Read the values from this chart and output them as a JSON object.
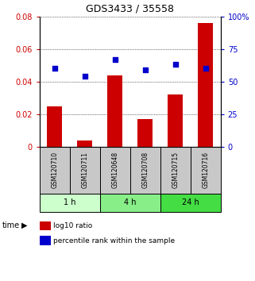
{
  "title": "GDS3433 / 35558",
  "samples": [
    "GSM120710",
    "GSM120711",
    "GSM120648",
    "GSM120708",
    "GSM120715",
    "GSM120716"
  ],
  "log10_ratio": [
    0.025,
    0.004,
    0.044,
    0.017,
    0.032,
    0.076
  ],
  "percentile_rank": [
    60,
    54,
    67,
    59,
    63,
    60
  ],
  "groups": [
    {
      "label": "1 h",
      "indices": [
        0,
        1
      ],
      "color": "#ccffcc"
    },
    {
      "label": "4 h",
      "indices": [
        2,
        3
      ],
      "color": "#88ee88"
    },
    {
      "label": "24 h",
      "indices": [
        4,
        5
      ],
      "color": "#44dd44"
    }
  ],
  "bar_color": "#cc0000",
  "dot_color": "#0000cc",
  "left_ylim": [
    0,
    0.08
  ],
  "right_ylim": [
    0,
    100
  ],
  "left_yticks": [
    0,
    0.02,
    0.04,
    0.06,
    0.08
  ],
  "right_yticks": [
    0,
    25,
    50,
    75,
    100
  ],
  "left_yticklabels": [
    "0",
    "0.02",
    "0.04",
    "0.06",
    "0.08"
  ],
  "right_yticklabels": [
    "0",
    "25",
    "50",
    "75",
    "100%"
  ],
  "left_tick_color": "#cc0000",
  "right_tick_color": "#0000cc",
  "sample_box_color": "#c8c8c8",
  "bar_width": 0.5,
  "dot_size": 22,
  "legend_sq_size": 6
}
